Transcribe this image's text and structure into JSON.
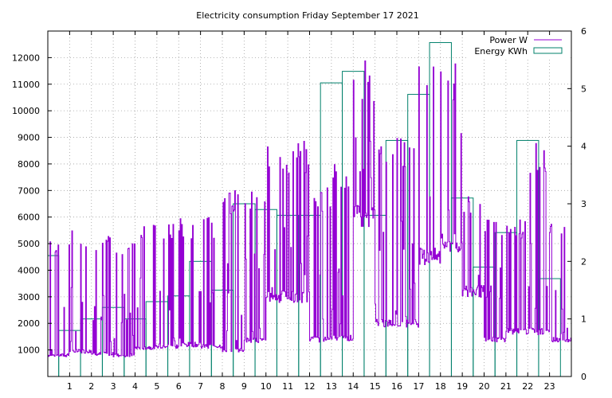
{
  "chart_data": {
    "type": "bar+line",
    "title": "Electricity consumption Friday September 17 2021",
    "x_ticks": [
      "1",
      "2",
      "3",
      "4",
      "5",
      "6",
      "7",
      "8",
      "9",
      "10",
      "11",
      "12",
      "13",
      "14",
      "15",
      "16",
      "17",
      "18",
      "19",
      "20",
      "21",
      "22",
      "23"
    ],
    "xlim": [
      0,
      24
    ],
    "y_left": {
      "lim": [
        0,
        13000
      ],
      "ticks": [
        "1000",
        "2000",
        "3000",
        "4000",
        "5000",
        "6000",
        "7000",
        "8000",
        "9000",
        "10000",
        "11000",
        "12000"
      ]
    },
    "y_right": {
      "lim": [
        0,
        6
      ],
      "ticks": [
        "0",
        "1",
        "2",
        "3",
        "4",
        "5",
        "6"
      ]
    },
    "grid": true,
    "legend_position": "top-right",
    "series": [
      {
        "name": "Energy KWh",
        "axis": "right",
        "color": "#00806b",
        "hours": [
          0,
          1,
          2,
          3,
          4,
          5,
          6,
          7,
          8,
          9,
          10,
          11,
          12,
          13,
          14,
          15,
          16,
          17,
          18,
          19,
          20,
          21,
          22,
          23
        ],
        "values": [
          2.1,
          0.8,
          1.0,
          1.2,
          1.0,
          1.3,
          1.4,
          2.0,
          1.5,
          3.0,
          2.9,
          2.8,
          2.8,
          5.1,
          5.3,
          2.8,
          4.1,
          4.9,
          5.8,
          3.1,
          1.9,
          2.5,
          4.1,
          1.7
        ]
      },
      {
        "name": "Power W",
        "axis": "left",
        "color": "#9400d3",
        "hourly_base": [
          800,
          950,
          850,
          800,
          1100,
          1150,
          1200,
          1150,
          1000,
          1350,
          3000,
          3000,
          1400,
          1450,
          6000,
          2000,
          2000,
          4500,
          5000,
          3200,
          1400,
          1700,
          1700,
          1400
        ],
        "hourly_spike": [
          5400,
          5600,
          5500,
          5300,
          5800,
          6000,
          6000,
          6000,
          7200,
          7200,
          9000,
          9000,
          7200,
          8000,
          12000,
          9000,
          9000,
          12000,
          12000,
          7200,
          6000,
          6000,
          9000,
          6000
        ]
      }
    ]
  }
}
